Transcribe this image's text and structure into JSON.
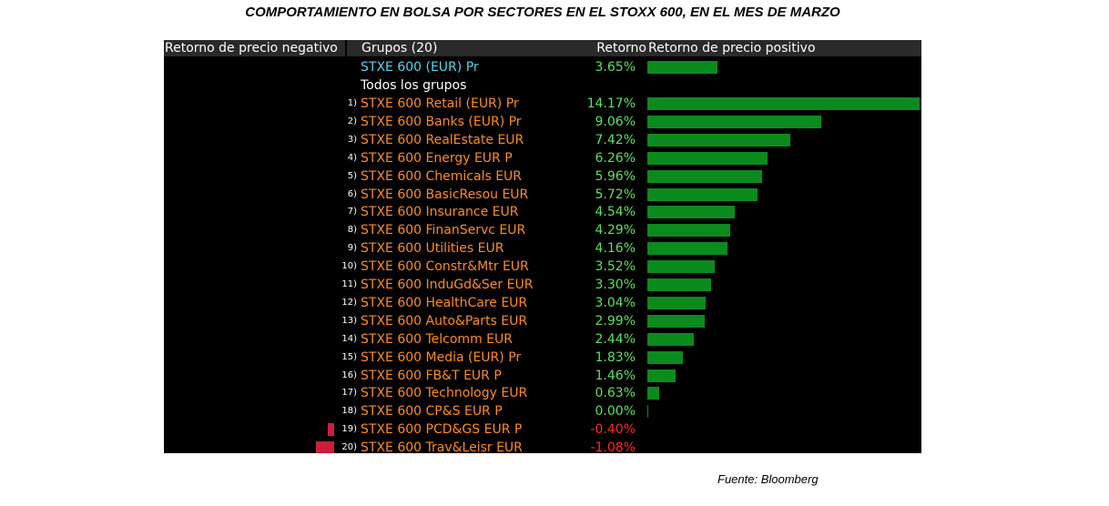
{
  "title": "COMPORTAMIENTO EN BOLSA POR SECTORES EN EL STOXX 600, EN EL MES DE MARZO",
  "source": "Fuente: Bloomberg",
  "header": {
    "negative": "Retorno de precio negativo",
    "groups": "Grupos (20)",
    "return": "Retorno",
    "positive": "Retorno de precio positivo"
  },
  "colors": {
    "positive_bar": "#0b8a1e",
    "negative_bar": "#c8203a",
    "positive_text": "#5ee05e",
    "negative_text": "#ff2a2a",
    "group_text": "#ff8c1a",
    "index_text": "#4fd8ef"
  },
  "index_row": {
    "name": "STXE 600 (EUR) Pr",
    "return": "3.65%",
    "value": 3.65
  },
  "all_groups_label": "Todos los grupos",
  "chart_data": {
    "type": "bar",
    "orientation": "horizontal",
    "title": "COMPORTAMIENTO EN BOLSA POR SECTORES EN EL STOXX 600, EN EL MES DE MARZO",
    "xlabel": "Retorno",
    "unit": "%",
    "max_abs": 14.17,
    "categories": [
      "STXE 600 Retail (EUR) Pr",
      "STXE 600 Banks (EUR) Pr",
      "STXE 600 RealEstate EUR",
      "STXE 600 Energy EUR P",
      "STXE 600 Chemicals EUR",
      "STXE 600 BasicResou EUR",
      "STXE 600 Insurance EUR",
      "STXE 600 FinanServc EUR",
      "STXE 600 Utilities EUR",
      "STXE 600 Constr&Mtr EUR",
      "STXE 600 InduGd&Ser EUR",
      "STXE 600 HealthCare EUR",
      "STXE 600 Auto&Parts EUR",
      "STXE 600 Telcomm EUR",
      "STXE 600 Media (EUR) Pr",
      "STXE 600 FB&T EUR P",
      "STXE 600 Technology EUR",
      "STXE 600 CP&S EUR P",
      "STXE 600 PCD&GS EUR P",
      "STXE 600 Trav&Leisr EUR"
    ],
    "ranks": [
      "1)",
      "2)",
      "3)",
      "4)",
      "5)",
      "6)",
      "7)",
      "8)",
      "9)",
      "10)",
      "11)",
      "12)",
      "13)",
      "14)",
      "15)",
      "16)",
      "17)",
      "18)",
      "19)",
      "20)"
    ],
    "labels": [
      "14.17%",
      "9.06%",
      "7.42%",
      "6.26%",
      "5.96%",
      "5.72%",
      "4.54%",
      "4.29%",
      "4.16%",
      "3.52%",
      "3.30%",
      "3.04%",
      "2.99%",
      "2.44%",
      "1.83%",
      "1.46%",
      "0.63%",
      "0.00%",
      "-0.40%",
      "-1.08%"
    ],
    "values": [
      14.17,
      9.06,
      7.42,
      6.26,
      5.96,
      5.72,
      4.54,
      4.29,
      4.16,
      3.52,
      3.3,
      3.04,
      2.99,
      2.44,
      1.83,
      1.46,
      0.63,
      0.0,
      -0.4,
      -1.08
    ]
  }
}
